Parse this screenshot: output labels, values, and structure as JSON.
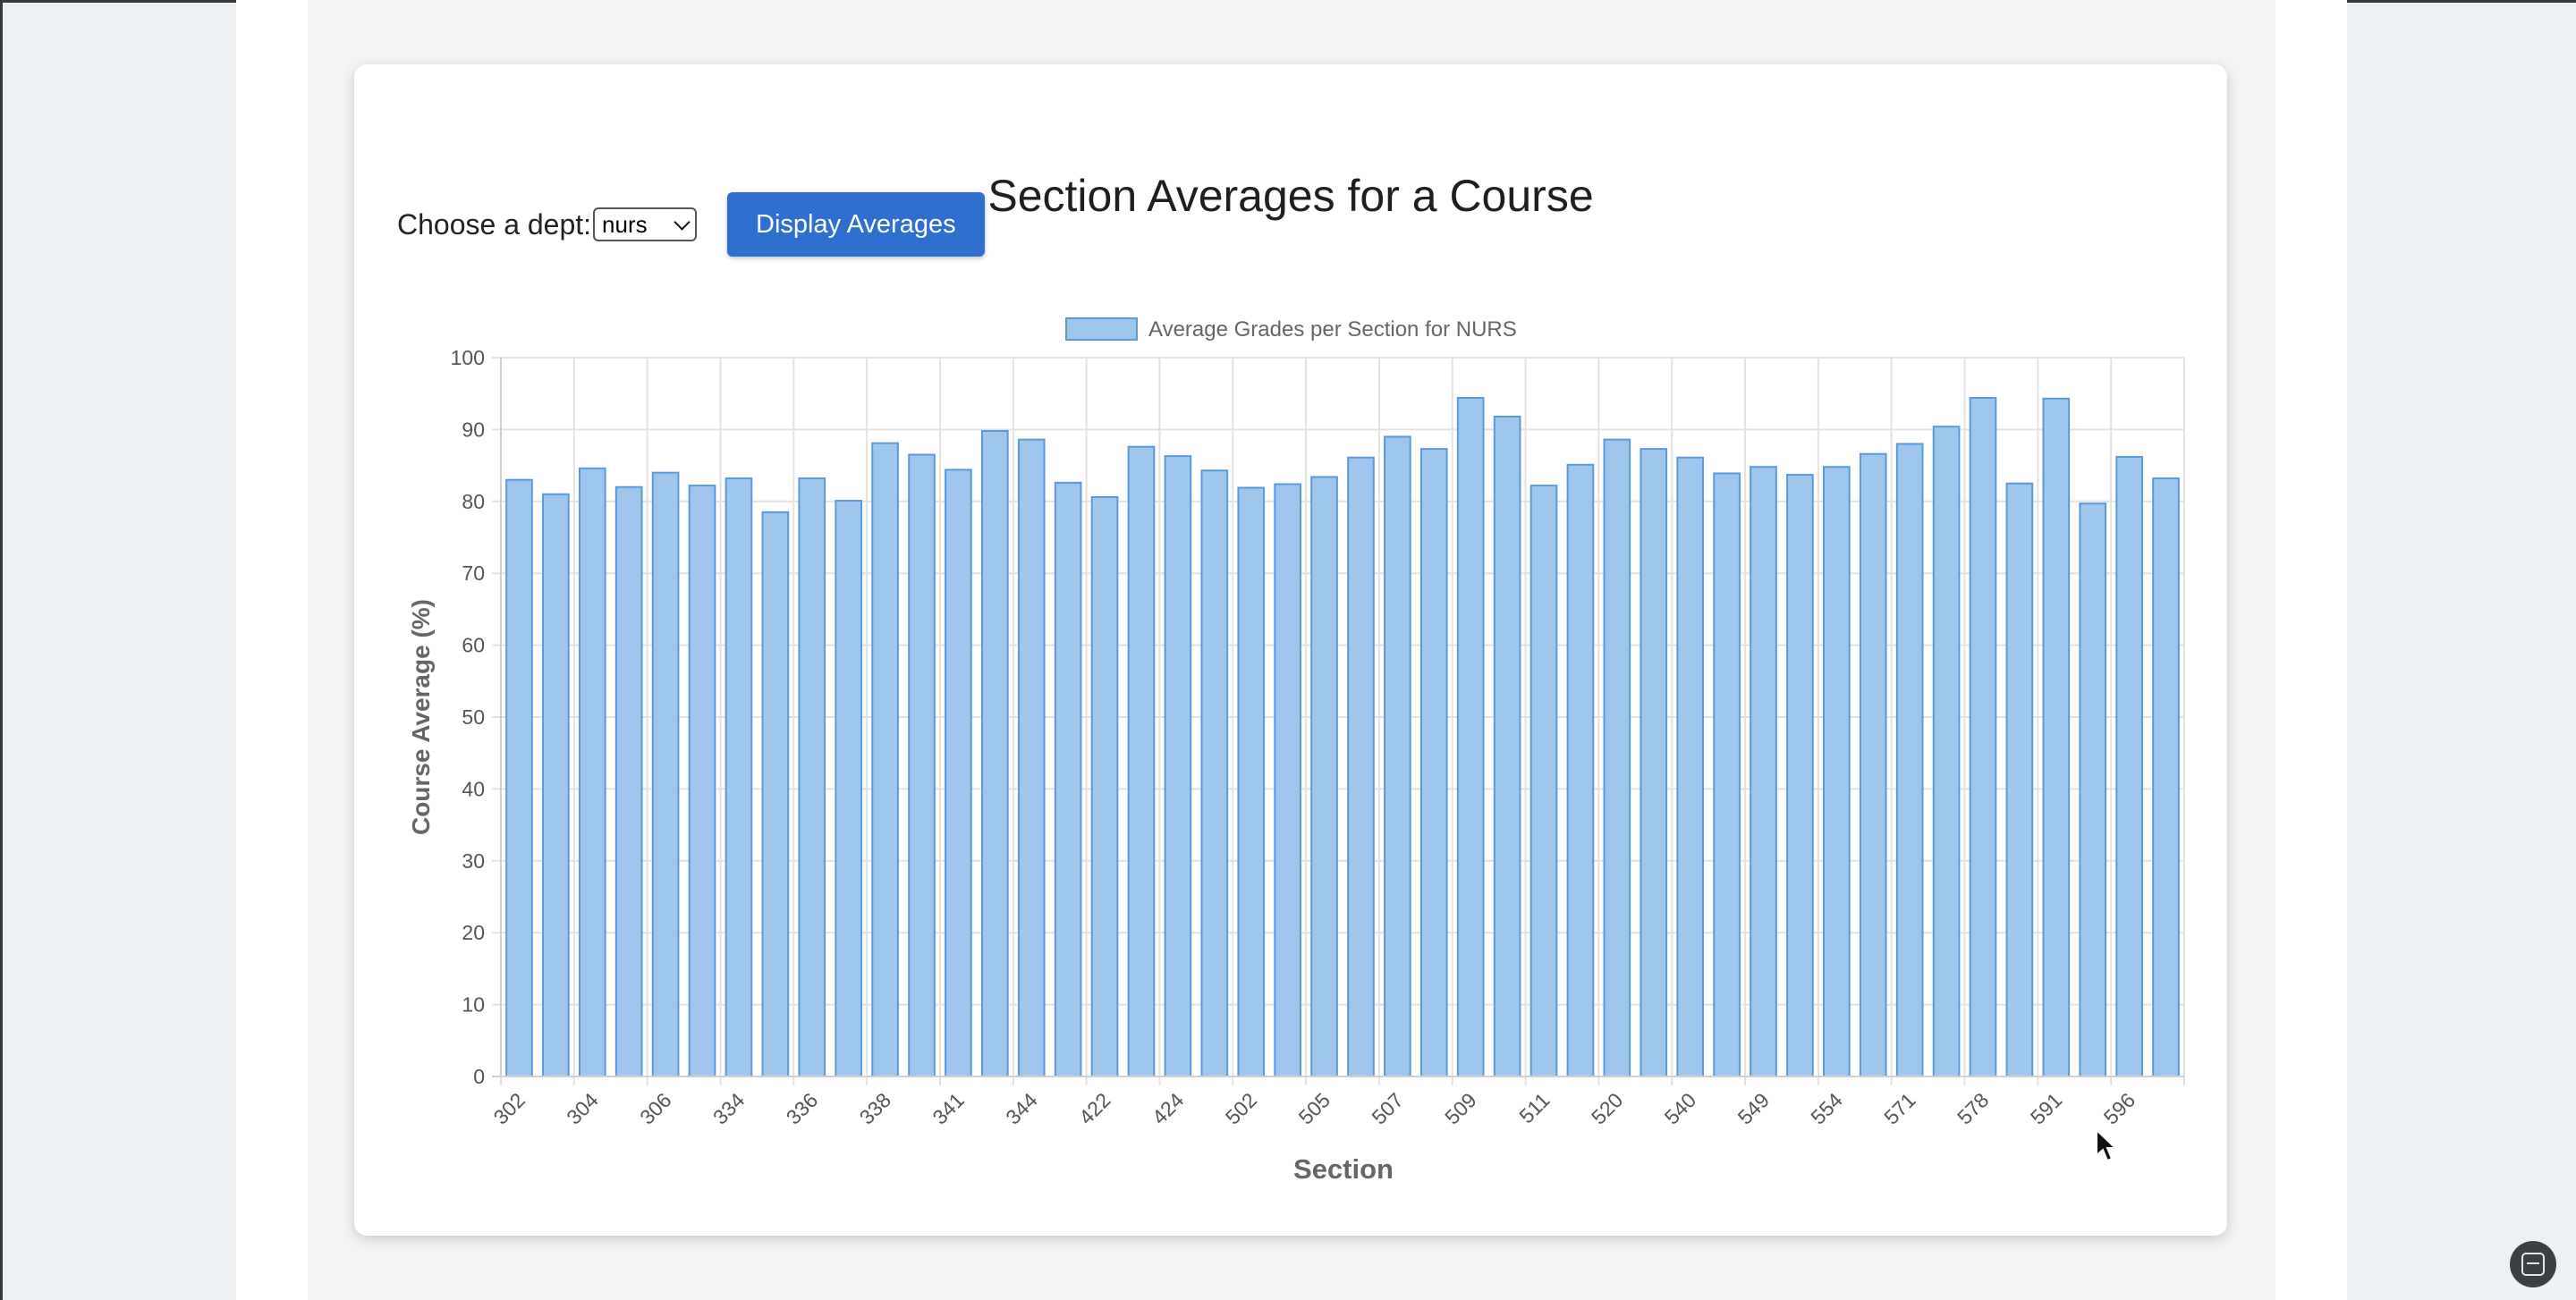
{
  "page": {
    "title": "Section Averages for a Course",
    "dept_label": "Choose a dept:",
    "dept_selected": "nurs",
    "display_button": "Display Averages"
  },
  "colors": {
    "bar_fill": "#9fc7ee",
    "bar_stroke": "#5a9ad8",
    "button": "#2f6fcf"
  },
  "icons": {
    "scan": "screen-scan-icon",
    "cursor": "mouse-pointer-icon",
    "dropdown": "chevron-down-icon"
  },
  "chart_data": {
    "type": "bar",
    "title": "",
    "legend": "Average Grades per Section for NURS",
    "legend_position": "top-center",
    "xlabel": "Section",
    "ylabel": "Course Average (%)",
    "ylim": [
      0,
      100
    ],
    "yticks": [
      0,
      10,
      20,
      30,
      40,
      50,
      60,
      70,
      80,
      90,
      100
    ],
    "grid": true,
    "xtick_labels": [
      "302",
      "304",
      "306",
      "334",
      "336",
      "338",
      "341",
      "344",
      "422",
      "424",
      "502",
      "505",
      "507",
      "509",
      "511",
      "520",
      "540",
      "549",
      "554",
      "571",
      "578",
      "591",
      "596"
    ],
    "values": [
      83.0,
      81.0,
      84.6,
      82.0,
      84.0,
      82.2,
      83.2,
      78.5,
      83.2,
      80.1,
      88.1,
      86.5,
      84.4,
      89.8,
      88.6,
      82.6,
      80.6,
      87.6,
      86.3,
      84.3,
      81.9,
      82.4,
      83.4,
      86.1,
      89.0,
      87.3,
      94.4,
      91.8,
      82.2,
      85.1,
      88.6,
      87.3,
      86.1,
      83.9,
      84.8,
      83.7,
      84.8,
      86.6,
      88.0,
      90.4,
      94.4,
      82.5,
      94.3,
      79.7,
      86.2,
      83.2
    ]
  }
}
